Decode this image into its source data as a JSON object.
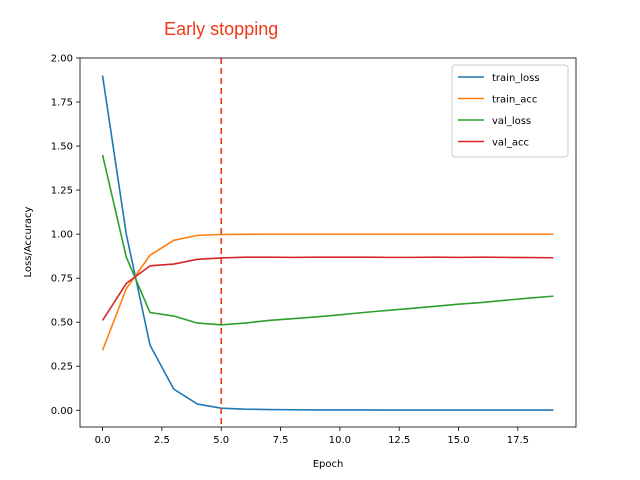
{
  "chart_data": {
    "type": "line",
    "xlabel": "Epoch",
    "ylabel": "Loss/Accuracy",
    "xlim": [
      -0.95,
      19.95
    ],
    "ylim": [
      -0.095,
      2.0
    ],
    "xticks": [
      0.0,
      2.5,
      5.0,
      7.5,
      10.0,
      12.5,
      15.0,
      17.5
    ],
    "yticks": [
      0.0,
      0.25,
      0.5,
      0.75,
      1.0,
      1.25,
      1.5,
      1.75,
      2.0
    ],
    "xtick_labels": [
      "0.0",
      "2.5",
      "5.0",
      "7.5",
      "10.0",
      "12.5",
      "15.0",
      "17.5"
    ],
    "ytick_labels": [
      "0.00",
      "0.25",
      "0.50",
      "0.75",
      "1.00",
      "1.25",
      "1.50",
      "1.75",
      "2.00"
    ],
    "grid": false,
    "legend_position": "top-right",
    "x": [
      0,
      1,
      2,
      3,
      4,
      5,
      6,
      7,
      8,
      9,
      10,
      11,
      12,
      13,
      14,
      15,
      16,
      17,
      18,
      19
    ],
    "series": [
      {
        "name": "train_loss",
        "color": "#1f77b4",
        "values": [
          1.9,
          1.0,
          0.37,
          0.12,
          0.035,
          0.012,
          0.006,
          0.004,
          0.003,
          0.002,
          0.002,
          0.002,
          0.001,
          0.001,
          0.001,
          0.001,
          0.001,
          0.001,
          0.001,
          0.001
        ]
      },
      {
        "name": "train_acc",
        "color": "#ff7f0e",
        "values": [
          0.34,
          0.69,
          0.88,
          0.965,
          0.993,
          0.998,
          0.999,
          1.0,
          1.0,
          1.0,
          1.0,
          1.0,
          1.0,
          1.0,
          1.0,
          1.0,
          1.0,
          1.0,
          1.0,
          1.0
        ]
      },
      {
        "name": "val_loss",
        "color": "#2ca02c",
        "values": [
          1.45,
          0.87,
          0.555,
          0.535,
          0.495,
          0.485,
          0.495,
          0.51,
          0.52,
          0.53,
          0.542,
          0.555,
          0.567,
          0.578,
          0.59,
          0.602,
          0.612,
          0.625,
          0.637,
          0.648
        ]
      },
      {
        "name": "val_acc",
        "color": "#d62728",
        "values": [
          0.51,
          0.72,
          0.82,
          0.83,
          0.857,
          0.865,
          0.869,
          0.869,
          0.868,
          0.869,
          0.869,
          0.869,
          0.868,
          0.868,
          0.869,
          0.868,
          0.869,
          0.868,
          0.867,
          0.866
        ]
      }
    ],
    "annotations": [
      {
        "text": "Early stopping",
        "x": 5.0,
        "color": "#ee3a1a",
        "style": "dashed-vertical-line"
      }
    ]
  }
}
